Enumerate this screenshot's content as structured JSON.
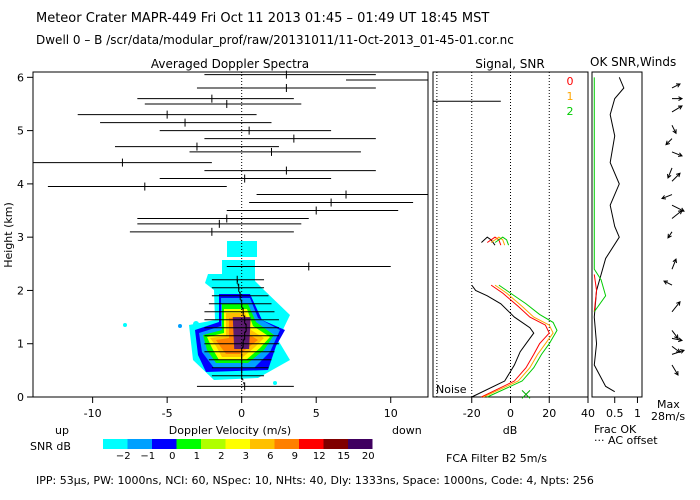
{
  "header": {
    "line1": "Meteor Crater   MAPR-449   Fri Oct 11 2013 01:45 – 01:49 UT 18:45 MST",
    "line2": "Dwell   0 –   B     /scr/data/modular_prof/raw/20131011/11-Oct-2013_01-45-01.cor.nc"
  },
  "footer": {
    "params": "IPP:  53µs,   PW: 1000ns,   NCI:  60,   NSpec: 10,  NHts: 40,   Dly: 1333ns,   Space: 1000ns,   Code: 4,   Npts: 256",
    "fca": "FCA Filter B2   5m/s"
  },
  "panel_labels": {
    "up": "up",
    "down": "down",
    "noise": "Noise",
    "frac_ok": "Frac OK",
    "ac_offset": "··· AC offset",
    "max": "Max",
    "max_val": "28m/s",
    "snr_db": "SNR dB",
    "ok_snr_winds": "OK SNR,Winds"
  },
  "colors": {
    "ok0": "#ff0000",
    "ok1": "#ffa500",
    "ok2": "#00cc00"
  },
  "chart_data": [
    {
      "id": "doppler",
      "type": "scatter",
      "title": "Averaged Doppler Spectra",
      "xlabel": "Doppler Velocity (m/s)",
      "ylabel": "Height (km)",
      "xlim": [
        -14,
        12.5
      ],
      "ylim": [
        0,
        6.1
      ],
      "xticks": [
        -10,
        -5,
        0,
        5,
        10
      ],
      "yticks": [
        0,
        1,
        2,
        3,
        4,
        5,
        6
      ],
      "points": [
        {
          "h": 6.05,
          "v": 3.0,
          "lo": -2.5,
          "hi": 9.0
        },
        {
          "h": 5.95,
          "v": 12.5,
          "lo": 7.0,
          "hi": 12.5
        },
        {
          "h": 5.8,
          "v": 3.0,
          "lo": -3.0,
          "hi": 9.0
        },
        {
          "h": 5.6,
          "v": -2.0,
          "lo": -7.0,
          "hi": 3.5
        },
        {
          "h": 5.5,
          "v": -1.0,
          "lo": -6.5,
          "hi": 4.0
        },
        {
          "h": 5.3,
          "v": -5.0,
          "lo": -11.0,
          "hi": 1.0
        },
        {
          "h": 5.15,
          "v": -3.8,
          "lo": -9.5,
          "hi": 2.0
        },
        {
          "h": 5.0,
          "v": 0.5,
          "lo": -5.5,
          "hi": 6.0
        },
        {
          "h": 4.85,
          "v": 3.5,
          "lo": -2.5,
          "hi": 9.0
        },
        {
          "h": 4.7,
          "v": -3.0,
          "lo": -8.5,
          "hi": 2.5
        },
        {
          "h": 4.6,
          "v": 2.0,
          "lo": -3.5,
          "hi": 8.0
        },
        {
          "h": 4.4,
          "v": -8.0,
          "lo": -14.0,
          "hi": -2.0
        },
        {
          "h": 4.25,
          "v": 3.0,
          "lo": -2.5,
          "hi": 9.0
        },
        {
          "h": 4.1,
          "v": 0.2,
          "lo": -5.5,
          "hi": 6.0
        },
        {
          "h": 3.95,
          "v": -6.5,
          "lo": -13.0,
          "hi": -1.0
        },
        {
          "h": 3.8,
          "v": 7.0,
          "lo": 1.0,
          "hi": 12.5
        },
        {
          "h": 3.65,
          "v": 6.0,
          "lo": 0.5,
          "hi": 11.5
        },
        {
          "h": 3.5,
          "v": 5.0,
          "lo": -1.0,
          "hi": 10.5
        },
        {
          "h": 3.35,
          "v": -1.0,
          "lo": -7.0,
          "hi": 4.5
        },
        {
          "h": 3.25,
          "v": -1.5,
          "lo": -7.0,
          "hi": 4.0
        },
        {
          "h": 3.1,
          "v": -2.0,
          "lo": -7.5,
          "hi": 3.5
        },
        {
          "h": 2.45,
          "v": 4.5,
          "lo": -1.0,
          "hi": 10.0
        },
        {
          "h": 2.2,
          "v": -0.3,
          "lo": -2.0,
          "hi": 1.5
        },
        {
          "h": 2.05,
          "v": -0.2,
          "lo": -2.0,
          "hi": 1.5
        },
        {
          "h": 1.9,
          "v": -0.1,
          "lo": -2.0,
          "hi": 1.8
        },
        {
          "h": 1.75,
          "v": 0.0,
          "lo": -2.2,
          "hi": 2.0
        },
        {
          "h": 1.6,
          "v": 0.1,
          "lo": -2.5,
          "hi": 2.2
        },
        {
          "h": 1.45,
          "v": 0.2,
          "lo": -2.5,
          "hi": 2.5
        },
        {
          "h": 1.3,
          "v": 0.3,
          "lo": -2.5,
          "hi": 2.5
        },
        {
          "h": 1.15,
          "v": 0.2,
          "lo": -2.5,
          "hi": 2.5
        },
        {
          "h": 1.0,
          "v": 0.1,
          "lo": -2.5,
          "hi": 2.5
        },
        {
          "h": 0.85,
          "v": 0.0,
          "lo": -2.5,
          "hi": 2.2
        },
        {
          "h": 0.7,
          "v": 0.0,
          "lo": -2.2,
          "hi": 2.0
        },
        {
          "h": 0.55,
          "v": 0.0,
          "lo": -2.0,
          "hi": 1.8
        },
        {
          "h": 0.4,
          "v": 0.0,
          "lo": -2.0,
          "hi": 1.5
        },
        {
          "h": 0.2,
          "v": 0.2,
          "lo": -3.0,
          "hi": 3.5
        }
      ],
      "snr_core": [
        {
          "level": "20",
          "color": "#5b1a6e",
          "pts": [
            [
              -0.5,
              0.9
            ],
            [
              0.5,
              0.9
            ],
            [
              0.6,
              1.5
            ],
            [
              -0.6,
              1.5
            ]
          ]
        }
      ]
    },
    {
      "id": "signal",
      "type": "line",
      "title": "Signal, SNR",
      "xlabel": "dB",
      "xlim": [
        -40,
        40
      ],
      "ylim": [
        0,
        6.1
      ],
      "xticks": [
        -20,
        0,
        20,
        40
      ],
      "dotted_x": [
        -20,
        0,
        20
      ],
      "noise_level": -38,
      "series": [
        {
          "name": "signal",
          "color": "#000000",
          "pts": [
            [
              -15,
              2.9
            ],
            [
              -12,
              3.0
            ],
            [
              -10,
              2.95
            ],
            [
              -8,
              2.85
            ],
            [
              -20,
              2.1
            ],
            [
              -18,
              2.0
            ],
            [
              -12,
              1.9
            ],
            [
              -5,
              1.75
            ],
            [
              2,
              1.5
            ],
            [
              10,
              1.3
            ],
            [
              12,
              1.2
            ],
            [
              8,
              1.0
            ],
            [
              5,
              0.85
            ],
            [
              2,
              0.6
            ],
            [
              -3,
              0.3
            ],
            [
              -20,
              0.0
            ]
          ]
        },
        {
          "name": "snr0",
          "color": "#ff0000",
          "pts": [
            [
              -12,
              2.9
            ],
            [
              -8,
              3.0
            ],
            [
              -6,
              2.95
            ],
            [
              -5,
              2.85
            ],
            [
              -10,
              2.1
            ],
            [
              -4,
              1.95
            ],
            [
              4,
              1.7
            ],
            [
              10,
              1.5
            ],
            [
              18,
              1.35
            ],
            [
              20,
              1.2
            ],
            [
              15,
              1.0
            ],
            [
              12,
              0.8
            ],
            [
              8,
              0.55
            ],
            [
              2,
              0.3
            ],
            [
              -15,
              0.0
            ]
          ]
        },
        {
          "name": "snr1",
          "color": "#ffa500",
          "pts": [
            [
              -10,
              2.9
            ],
            [
              -6,
              3.0
            ],
            [
              -4,
              2.95
            ],
            [
              -3,
              2.85
            ],
            [
              -8,
              2.1
            ],
            [
              -2,
              1.95
            ],
            [
              6,
              1.7
            ],
            [
              12,
              1.5
            ],
            [
              20,
              1.35
            ],
            [
              22,
              1.2
            ],
            [
              18,
              1.0
            ],
            [
              14,
              0.8
            ],
            [
              10,
              0.55
            ],
            [
              4,
              0.3
            ],
            [
              -14,
              0.0
            ]
          ]
        },
        {
          "name": "snr2",
          "color": "#00cc00",
          "pts": [
            [
              -8,
              2.9
            ],
            [
              -4,
              3.0
            ],
            [
              -2,
              2.95
            ],
            [
              -1,
              2.85
            ],
            [
              -6,
              2.1
            ],
            [
              0,
              1.95
            ],
            [
              8,
              1.75
            ],
            [
              15,
              1.55
            ],
            [
              22,
              1.4
            ],
            [
              24,
              1.25
            ],
            [
              20,
              1.0
            ],
            [
              16,
              0.8
            ],
            [
              12,
              0.55
            ],
            [
              6,
              0.3
            ],
            [
              -12,
              0.0
            ]
          ]
        }
      ],
      "markers": [
        {
          "x": 8,
          "h": 0.05,
          "color": "#00aa00"
        }
      ]
    },
    {
      "id": "fracok",
      "type": "line",
      "xlabel": "Frac OK",
      "xlim": [
        0,
        1.1
      ],
      "ylim": [
        0,
        6.1
      ],
      "xticks": [
        0.5,
        1
      ],
      "tick_labels": [
        "0.5",
        "1"
      ],
      "ok_labels": [
        "0",
        "1",
        "2"
      ],
      "series": [
        {
          "name": "frac",
          "color": "#000000",
          "pts": [
            [
              0.6,
              6.0
            ],
            [
              0.7,
              5.8
            ],
            [
              0.5,
              5.6
            ],
            [
              0.4,
              5.3
            ],
            [
              0.5,
              4.9
            ],
            [
              0.4,
              4.4
            ],
            [
              0.6,
              4.0
            ],
            [
              0.4,
              3.6
            ],
            [
              0.5,
              3.2
            ],
            [
              0.6,
              3.0
            ],
            [
              0.3,
              2.6
            ],
            [
              0.2,
              2.3
            ],
            [
              0.1,
              2.0
            ],
            [
              0.05,
              1.5
            ],
            [
              0.1,
              1.0
            ],
            [
              0.05,
              0.6
            ],
            [
              0.3,
              0.2
            ],
            [
              0.5,
              0.1
            ]
          ]
        },
        {
          "name": "okred",
          "color": "#ff0000",
          "pts": [
            [
              0.05,
              2.3
            ],
            [
              0.1,
              2.0
            ],
            [
              0.05,
              1.6
            ]
          ]
        },
        {
          "name": "okgreen",
          "color": "#00cc00",
          "pts": [
            [
              0.05,
              6.0
            ],
            [
              0.05,
              4.0
            ],
            [
              0.05,
              2.4
            ],
            [
              0.2,
              2.2
            ],
            [
              0.3,
              1.9
            ],
            [
              0.05,
              1.6
            ]
          ]
        }
      ]
    },
    {
      "id": "winds",
      "type": "scatter",
      "xlabel": "28m/s",
      "ylim": [
        0,
        6.1
      ],
      "arrows": [
        {
          "h": 5.8,
          "dx": 8,
          "dy": -4
        },
        {
          "h": 5.6,
          "dx": 10,
          "dy": 0
        },
        {
          "h": 5.35,
          "dx": 10,
          "dy": -6
        },
        {
          "h": 5.1,
          "dx": 4,
          "dy": 8
        },
        {
          "h": 4.85,
          "dx": -6,
          "dy": 6
        },
        {
          "h": 4.6,
          "dx": 10,
          "dy": 4
        },
        {
          "h": 4.3,
          "dx": -4,
          "dy": 10
        },
        {
          "h": 4.05,
          "dx": 8,
          "dy": -8
        },
        {
          "h": 3.8,
          "dx": -10,
          "dy": 4
        },
        {
          "h": 3.6,
          "dx": 12,
          "dy": 6
        },
        {
          "h": 3.35,
          "dx": 10,
          "dy": -8
        },
        {
          "h": 3.1,
          "dx": -4,
          "dy": 6
        },
        {
          "h": 2.4,
          "dx": 4,
          "dy": -10
        },
        {
          "h": 2.1,
          "dx": -8,
          "dy": -4
        },
        {
          "h": 1.6,
          "dx": 8,
          "dy": -10
        },
        {
          "h": 1.25,
          "dx": 6,
          "dy": 8
        },
        {
          "h": 1.1,
          "dx": 10,
          "dy": 2
        },
        {
          "h": 0.95,
          "dx": 8,
          "dy": 6
        },
        {
          "h": 0.8,
          "dx": 12,
          "dy": -4
        },
        {
          "h": 0.6,
          "dx": 6,
          "dy": 10
        }
      ]
    }
  ],
  "colorbar": {
    "labels": [
      "−2",
      "−1",
      "0",
      "1",
      "2",
      "3",
      "6",
      "9",
      "12",
      "15",
      "20"
    ],
    "colors": [
      "#00ffff",
      "#00a0ff",
      "#0000ff",
      "#00ff00",
      "#b0ff00",
      "#ffff00",
      "#ffc000",
      "#ff8000",
      "#ff0000",
      "#800000",
      "#400060"
    ]
  }
}
